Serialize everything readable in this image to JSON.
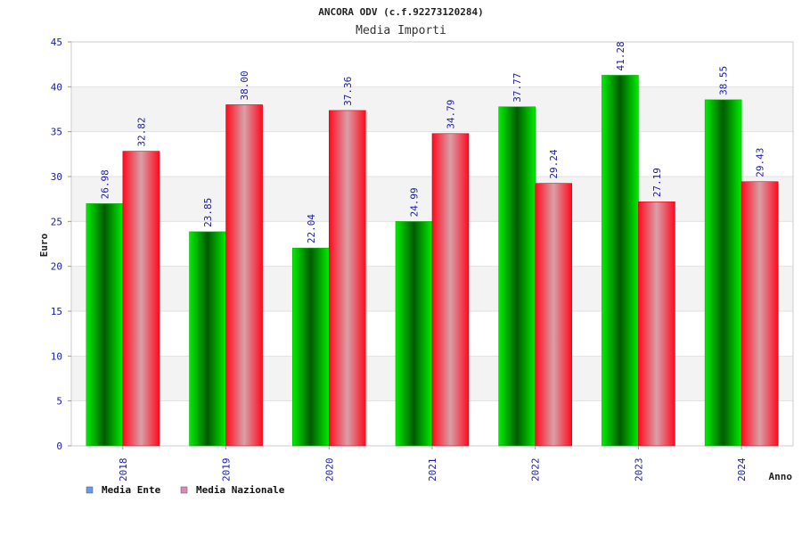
{
  "chart_data": {
    "type": "bar",
    "title": "ANCORA ODV (c.f.92273120284)",
    "subtitle": "Media Importi",
    "xlabel": "Anno",
    "ylabel": "Euro",
    "categories": [
      "2018",
      "2019",
      "2020",
      "2021",
      "2022",
      "2023",
      "2024"
    ],
    "series": [
      {
        "name": "Media Ente",
        "values": [
          26.98,
          23.85,
          22.04,
          24.99,
          37.77,
          41.28,
          38.55
        ],
        "labels": [
          "26.98",
          "23.85",
          "22.04",
          "24.99",
          "37.77",
          "41.28",
          "38.55"
        ],
        "color": "#00c800",
        "legend_color": "#6699ee"
      },
      {
        "name": "Media Nazionale",
        "values": [
          32.82,
          38.0,
          37.36,
          34.79,
          29.24,
          27.19,
          29.43
        ],
        "labels": [
          "32.82",
          "38.00",
          "37.36",
          "34.79",
          "29.24",
          "27.19",
          "29.43"
        ],
        "color": "#ff0a1e",
        "legend_color": "#dd88bb"
      }
    ],
    "ylim": [
      0,
      45
    ],
    "yticks": [
      "0",
      "5",
      "10",
      "15",
      "20",
      "25",
      "30",
      "35",
      "40",
      "45"
    ],
    "grid": true,
    "legend_position": "bottom-left",
    "colors": {
      "tick_text": "#1a1aa6",
      "grid_band": "#f3f3f3"
    }
  }
}
